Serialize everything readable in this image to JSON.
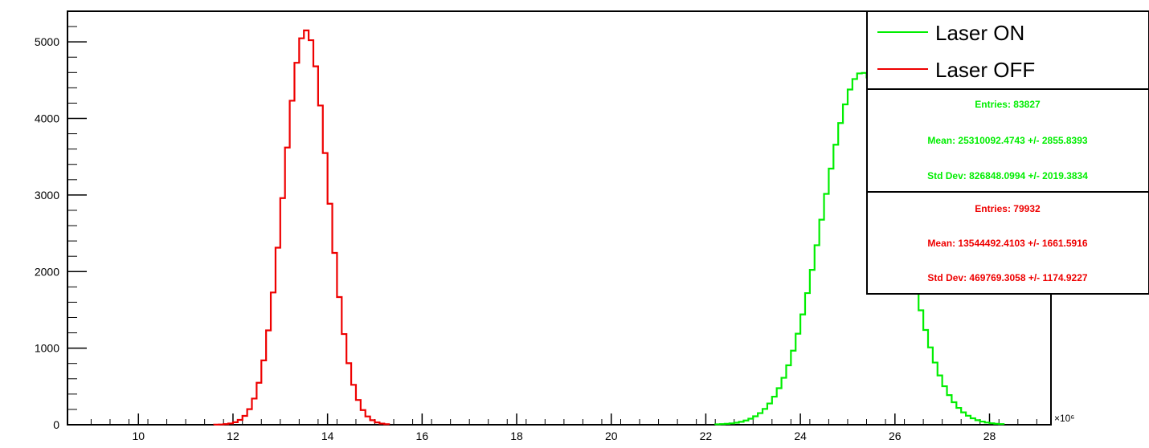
{
  "chart_data": {
    "type": "histogram",
    "x_scale_label": "×10⁶",
    "xlim": [
      8.5,
      29.3
    ],
    "ylim": [
      0,
      5400
    ],
    "x_ticks": [
      10,
      12,
      14,
      16,
      18,
      20,
      22,
      24,
      26,
      28
    ],
    "y_ticks": [
      0,
      1000,
      2000,
      3000,
      4000,
      5000
    ],
    "grid": false,
    "legend_position": "top-right",
    "series": [
      {
        "name": "Laser ON",
        "color": "#00ee00",
        "mean": 25.310092,
        "std": 0.826848,
        "amplitude": 4600,
        "bin_width": 0.1,
        "range": [
          22.2,
          28.3
        ],
        "stats": {
          "entries": "Entries: 83827",
          "mean": "Mean: 25310092.4743 +/- 2855.8393",
          "std": "Std Dev: 826848.0994 +/- 2019.3834"
        }
      },
      {
        "name": "Laser OFF",
        "color": "#ee0000",
        "mean": 13.544492,
        "std": 0.469769,
        "amplitude": 5150,
        "bin_width": 0.1,
        "range": [
          11.6,
          15.3
        ],
        "stats": {
          "entries": "Entries: 79932",
          "mean": "Mean: 13544492.4103 +/- 1661.5916",
          "std": "Std Dev: 469769.3058 +/- 1174.9227"
        }
      }
    ]
  }
}
